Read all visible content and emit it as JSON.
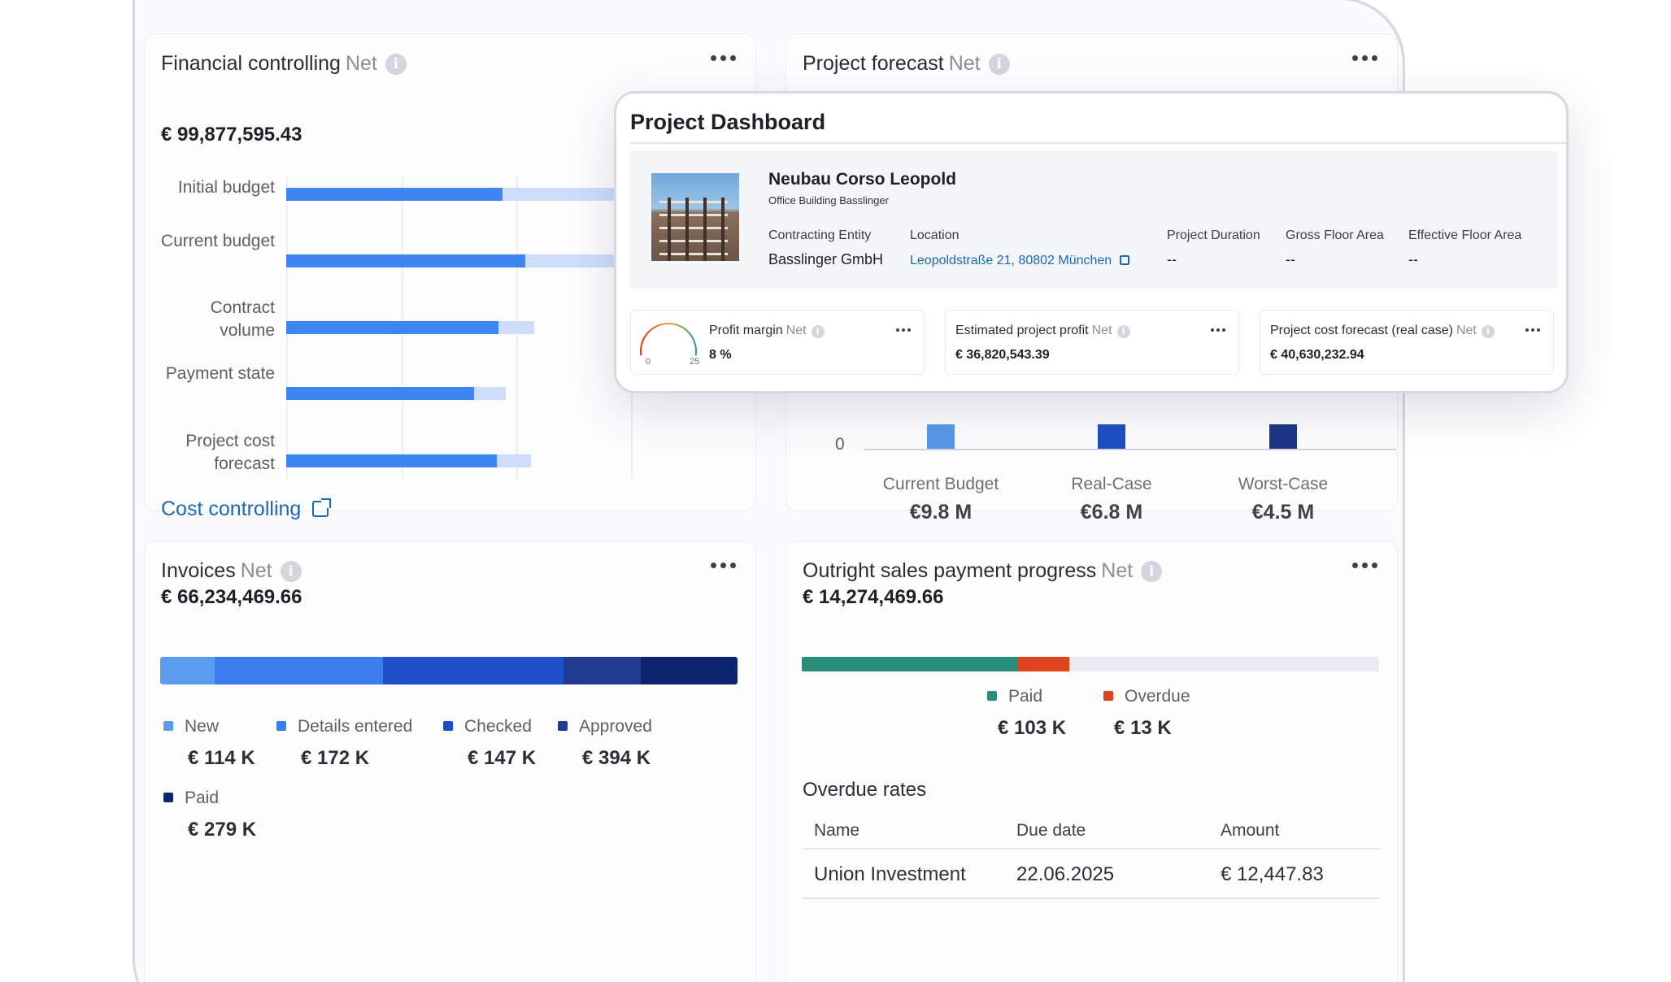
{
  "financial": {
    "title": "Financial controlling",
    "net": "Net",
    "amount": "€ 99,877,595.43",
    "rows": [
      {
        "label": "Initial budget",
        "value": 0.38,
        "bg": 0.78
      },
      {
        "label": "Current budget",
        "value": 0.42,
        "bg": 0.8
      },
      {
        "label": "Contract volume",
        "value": 0.373,
        "bg": 0.436
      },
      {
        "label": "Payment state",
        "value": 0.33,
        "bg": 0.385
      },
      {
        "label": "Project cost forecast",
        "value": 0.37,
        "bg": 0.43
      }
    ],
    "link": "Cost controlling"
  },
  "forecast": {
    "title": "Project forecast",
    "net": "Net",
    "zero_label": "0",
    "bars": [
      {
        "label": "Current Budget",
        "value_label": "€9.8 M",
        "color": "#5a98ea"
      },
      {
        "label": "Real-Case",
        "value_label": "€6.8 M",
        "color": "#1e4fc2"
      },
      {
        "label": "Worst-Case",
        "value_label": "€4.5 M",
        "color": "#1b3684"
      }
    ]
  },
  "invoices": {
    "title": "Invoices",
    "net": "Net",
    "amount": "€ 66,234,469.66",
    "segments": [
      {
        "label": "New",
        "value": "€ 114 K",
        "color": "#5b9bf0",
        "share": 0.094
      },
      {
        "label": "Details entered",
        "value": "€ 172 K",
        "color": "#3b7ded",
        "share": 0.292
      },
      {
        "label": "Checked",
        "value": "€ 147 K",
        "color": "#1e4fc8",
        "share": 0.313
      },
      {
        "label": "Approved",
        "value": "€ 394 K",
        "color": "#1f3a8f",
        "share": 0.134
      },
      {
        "label": "Paid",
        "value": "€ 279 K",
        "color": "#0c246d",
        "share": 0.167
      }
    ]
  },
  "outright": {
    "title": "Outright sales payment progress",
    "net": "Net",
    "amount": "€ 14,274,469.66",
    "progress": [
      {
        "label": "Paid",
        "value": "€ 103 K",
        "color": "#2a8c7a",
        "share": 0.373
      },
      {
        "label": "Overdue",
        "value": "€ 13 K",
        "color": "#e0441f",
        "share": 0.09
      }
    ],
    "overdue_title": "Overdue rates",
    "table": {
      "headers": [
        "Name",
        "Due date",
        "Amount"
      ],
      "rows": [
        [
          "Union Investment",
          "22.06.2025",
          "€ 12,447.83"
        ]
      ]
    }
  },
  "popup": {
    "title": "Project Dashboard",
    "project": {
      "name": "Neubau Corso Leopold",
      "subtitle": "Office Building Basslinger",
      "fields": [
        {
          "label": "Contracting Entity",
          "value": "Basslinger GmbH"
        },
        {
          "label": "Location",
          "value": "Leopoldstraße 21, 80802 München"
        },
        {
          "label": "Project Duration",
          "value": "--"
        },
        {
          "label": "Gross Floor Area",
          "value": "--"
        },
        {
          "label": "Effective Floor Area",
          "value": "--"
        }
      ]
    },
    "kpis": [
      {
        "title": "Profit margin",
        "net": "Net",
        "value": "8 %",
        "gauge_min": "0",
        "gauge_max": "25",
        "gauge_value": 8
      },
      {
        "title": "Estimated project profit",
        "net": "Net",
        "value": "€ 36,820,543.39"
      },
      {
        "title": "Project cost forecast (real case)",
        "net": "Net",
        "value": "€ 40,630,232.94"
      }
    ]
  },
  "icons": [
    "info-icon",
    "more-icon",
    "external-link-icon"
  ]
}
